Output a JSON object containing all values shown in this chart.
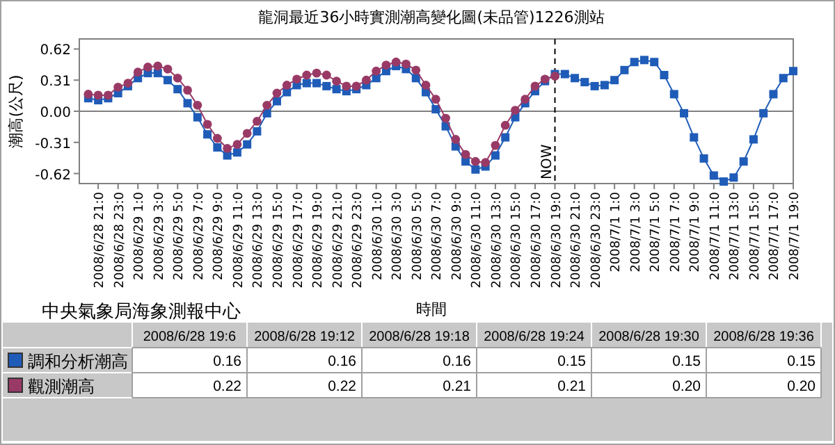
{
  "chart_data": [
    {
      "type": "line",
      "title": "龍洞最近36小時實測潮高變化圖(未品管)1226測站",
      "xlabel": "時間",
      "ylabel": "潮高(公尺)",
      "annotations": [
        "中央氣象局海象測報中心"
      ],
      "xlim": [
        "2008-06-28T19:06",
        "2008-07-01T19:00"
      ],
      "ylim": [
        -0.72,
        0.72
      ],
      "yticks": [
        {
          "value": -0.62,
          "label": "-0.62"
        },
        {
          "value": -0.31,
          "label": "-0.31"
        },
        {
          "value": 0,
          "label": "0.00"
        },
        {
          "value": 0.31,
          "label": "0.31"
        },
        {
          "value": 0.62,
          "label": "0.62"
        }
      ],
      "xticks": [
        {
          "value": "2008-06-28T21:00",
          "label": "2008/6/28 21:0"
        },
        {
          "value": "2008-06-28T23:00",
          "label": "2008/6/28 23:0"
        },
        {
          "value": "2008-06-29T01:00",
          "label": "2008/6/29 1:0"
        },
        {
          "value": "2008-06-29T03:00",
          "label": "2008/6/29 3:0"
        },
        {
          "value": "2008-06-29T05:00",
          "label": "2008/6/29 5:0"
        },
        {
          "value": "2008-06-29T07:00",
          "label": "2008/6/29 7:0"
        },
        {
          "value": "2008-06-29T09:00",
          "label": "2008/6/29 9:0"
        },
        {
          "value": "2008-06-29T11:00",
          "label": "2008/6/29 11:0"
        },
        {
          "value": "2008-06-29T13:00",
          "label": "2008/6/29 13:0"
        },
        {
          "value": "2008-06-29T15:00",
          "label": "2008/6/29 15:0"
        },
        {
          "value": "2008-06-29T17:00",
          "label": "2008/6/29 17:0"
        },
        {
          "value": "2008-06-29T19:00",
          "label": "2008/6/29 19:0"
        },
        {
          "value": "2008-06-29T21:00",
          "label": "2008/6/29 21:0"
        },
        {
          "value": "2008-06-29T23:00",
          "label": "2008/6/29 23:0"
        },
        {
          "value": "2008-06-30T01:00",
          "label": "2008/6/30 1:0"
        },
        {
          "value": "2008-06-30T03:00",
          "label": "2008/6/30 3:0"
        },
        {
          "value": "2008-06-30T05:00",
          "label": "2008/6/30 5:0"
        },
        {
          "value": "2008-06-30T07:00",
          "label": "2008/6/30 7:0"
        },
        {
          "value": "2008-06-30T09:00",
          "label": "2008/6/30 9:0"
        },
        {
          "value": "2008-06-30T11:00",
          "label": "2008/6/30 11:0"
        },
        {
          "value": "2008-06-30T13:00",
          "label": "2008/6/30 13:0"
        },
        {
          "value": "2008-06-30T15:00",
          "label": "2008/6/30 15:0"
        },
        {
          "value": "2008-06-30T17:00",
          "label": "2008/6/30 17:0"
        },
        {
          "value": "2008-06-30T19:00",
          "label": "2008/6/30 19:0"
        },
        {
          "value": "2008-06-30T21:00",
          "label": "2008/6/30 21:0"
        },
        {
          "value": "2008-06-30T23:00",
          "label": "2008/6/30 23:0"
        },
        {
          "value": "2008-07-01T01:00",
          "label": "2008/7/1 1:0"
        },
        {
          "value": "2008-07-01T03:00",
          "label": "2008/7/1 3:0"
        },
        {
          "value": "2008-07-01T05:00",
          "label": "2008/7/1 5:0"
        },
        {
          "value": "2008-07-01T07:00",
          "label": "2008/7/1 7:0"
        },
        {
          "value": "2008-07-01T09:00",
          "label": "2008/7/1 9:0"
        },
        {
          "value": "2008-07-01T11:00",
          "label": "2008/7/1 11:0"
        },
        {
          "value": "2008-07-01T13:00",
          "label": "2008/7/1 13:0"
        },
        {
          "value": "2008-07-01T15:00",
          "label": "2008/7/1 15:0"
        },
        {
          "value": "2008-07-01T17:00",
          "label": "2008/7/1 17:0"
        },
        {
          "value": "2008-07-01T19:00",
          "label": "2008/7/1 19:0"
        }
      ],
      "ref_lines": [
        {
          "axis": "y",
          "value": 0,
          "color": "#808080",
          "line_style": "solid"
        },
        {
          "axis": "x",
          "value": "2008-06-30T19:00",
          "label": "NOW",
          "color": "#000000",
          "line_style": "dashed"
        }
      ],
      "x": [
        "2008-06-28T20:00",
        "2008-06-28T21:00",
        "2008-06-28T22:00",
        "2008-06-28T23:00",
        "2008-06-29T00:00",
        "2008-06-29T01:00",
        "2008-06-29T02:00",
        "2008-06-29T03:00",
        "2008-06-29T04:00",
        "2008-06-29T05:00",
        "2008-06-29T06:00",
        "2008-06-29T07:00",
        "2008-06-29T08:00",
        "2008-06-29T09:00",
        "2008-06-29T10:00",
        "2008-06-29T11:00",
        "2008-06-29T12:00",
        "2008-06-29T13:00",
        "2008-06-29T14:00",
        "2008-06-29T15:00",
        "2008-06-29T16:00",
        "2008-06-29T17:00",
        "2008-06-29T18:00",
        "2008-06-29T19:00",
        "2008-06-29T20:00",
        "2008-06-29T21:00",
        "2008-06-29T22:00",
        "2008-06-29T23:00",
        "2008-06-30T00:00",
        "2008-06-30T01:00",
        "2008-06-30T02:00",
        "2008-06-30T03:00",
        "2008-06-30T04:00",
        "2008-06-30T05:00",
        "2008-06-30T06:00",
        "2008-06-30T07:00",
        "2008-06-30T08:00",
        "2008-06-30T09:00",
        "2008-06-30T10:00",
        "2008-06-30T11:00",
        "2008-06-30T12:00",
        "2008-06-30T13:00",
        "2008-06-30T14:00",
        "2008-06-30T15:00",
        "2008-06-30T16:00",
        "2008-06-30T17:00",
        "2008-06-30T18:00",
        "2008-06-30T19:00",
        "2008-06-30T20:00",
        "2008-06-30T21:00",
        "2008-06-30T22:00",
        "2008-06-30T23:00",
        "2008-07-01T00:00",
        "2008-07-01T01:00",
        "2008-07-01T02:00",
        "2008-07-01T03:00",
        "2008-07-01T04:00",
        "2008-07-01T05:00",
        "2008-07-01T06:00",
        "2008-07-01T07:00",
        "2008-07-01T08:00",
        "2008-07-01T09:00",
        "2008-07-01T10:00",
        "2008-07-01T11:00",
        "2008-07-01T12:00",
        "2008-07-01T13:00",
        "2008-07-01T14:00",
        "2008-07-01T15:00",
        "2008-07-01T16:00",
        "2008-07-01T17:00",
        "2008-07-01T18:00",
        "2008-07-01T19:00"
      ],
      "series": [
        {
          "color": "#1f5cb8",
          "marker": "square",
          "values": [
            0.13,
            0.11,
            0.13,
            0.18,
            0.25,
            0.33,
            0.38,
            0.38,
            0.31,
            0.22,
            0.08,
            -0.06,
            -0.23,
            -0.36,
            -0.44,
            -0.41,
            -0.33,
            -0.2,
            -0.02,
            0.1,
            0.19,
            0.26,
            0.28,
            0.28,
            0.25,
            0.22,
            0.2,
            0.22,
            0.26,
            0.33,
            0.4,
            0.45,
            0.42,
            0.33,
            0.19,
            0.02,
            -0.15,
            -0.35,
            -0.5,
            -0.58,
            -0.55,
            -0.44,
            -0.26,
            -0.06,
            0.08,
            0.2,
            0.3,
            0.37,
            0.37,
            0.33,
            0.29,
            0.25,
            0.26,
            0.31,
            0.41,
            0.49,
            0.51,
            0.49,
            0.36,
            0.17,
            -0.02,
            -0.26,
            -0.47,
            -0.64,
            -0.7,
            -0.66,
            -0.5,
            -0.28,
            -0.02,
            0.17,
            0.33,
            0.4
          ]
        },
        {
          "color": "#993a66",
          "marker": "circle",
          "values": [
            0.17,
            0.16,
            0.16,
            0.24,
            0.28,
            0.39,
            0.44,
            0.45,
            0.42,
            0.33,
            0.21,
            0.06,
            -0.13,
            -0.27,
            -0.37,
            -0.33,
            -0.22,
            -0.1,
            0.06,
            0.18,
            0.26,
            0.32,
            0.36,
            0.38,
            0.36,
            0.3,
            0.25,
            0.25,
            0.31,
            0.4,
            0.46,
            0.49,
            0.47,
            0.41,
            0.26,
            0.12,
            -0.07,
            -0.28,
            -0.43,
            -0.5,
            -0.51,
            -0.34,
            -0.14,
            0.01,
            0.12,
            0.25,
            0.32,
            0.35,
            null,
            null,
            null,
            null,
            null,
            null,
            null,
            null,
            null,
            null,
            null,
            null,
            null,
            null,
            null,
            null,
            null,
            null,
            null,
            null,
            null,
            null,
            null,
            null
          ]
        }
      ]
    },
    {
      "type": "other",
      "categories": [
        "2008/6/28 19:6",
        "2008/6/28 19:12",
        "2008/6/28 19:18",
        "2008/6/28 19:24",
        "2008/6/28 19:30",
        "2008/6/28 19:36"
      ],
      "series": [
        {
          "name": "調和分析潮高",
          "color": "#1f5cb8",
          "values": [
            0.16,
            0.16,
            0.16,
            0.15,
            0.15,
            0.15
          ],
          "value_labels": [
            "0.16",
            "0.16",
            "0.16",
            "0.15",
            "0.15",
            "0.15"
          ]
        },
        {
          "name": "觀測潮高",
          "color": "#993a66",
          "values": [
            0.22,
            0.22,
            0.21,
            0.21,
            0.2,
            0.2
          ],
          "value_labels": [
            "0.22",
            "0.22",
            "0.21",
            "0.21",
            "0.20",
            "0.20"
          ]
        }
      ]
    }
  ]
}
